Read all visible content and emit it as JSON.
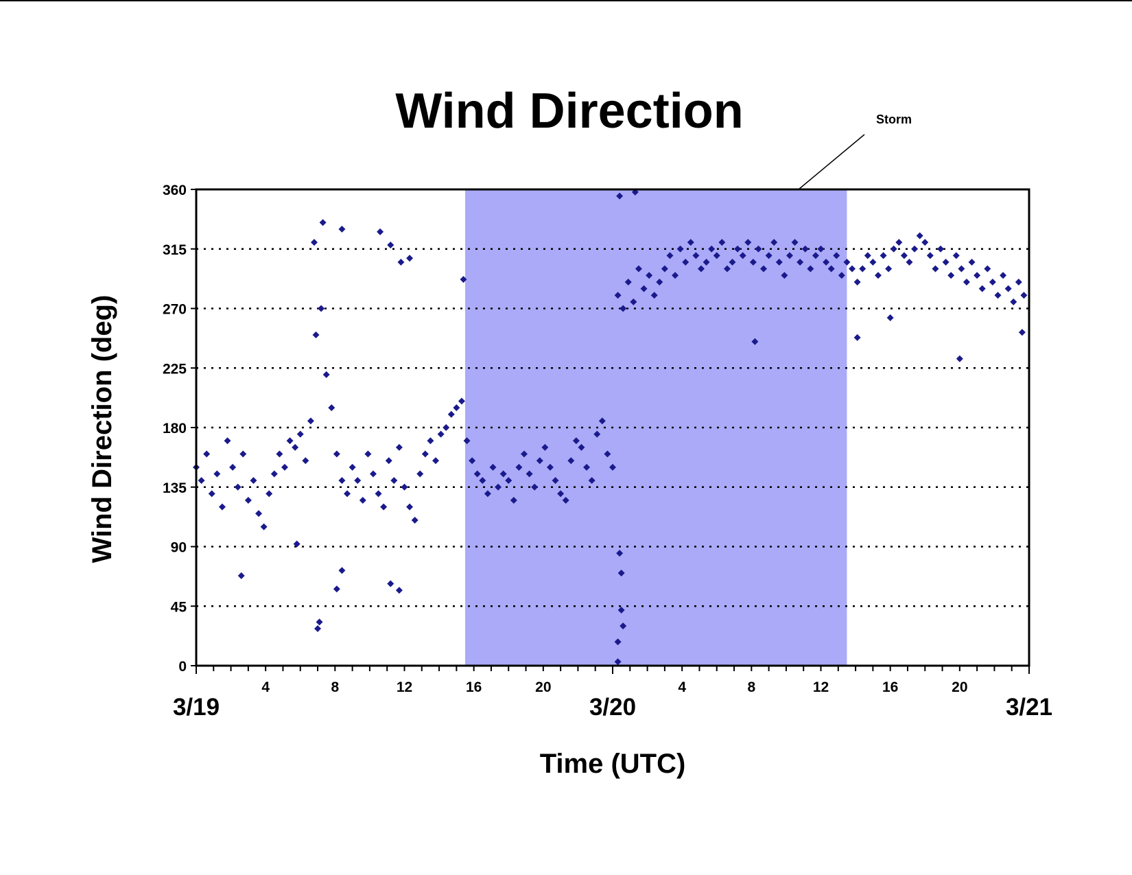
{
  "chart_data": {
    "type": "scatter",
    "title": "Wind Direction",
    "xlabel": "Time (UTC)",
    "ylabel": "Wind Direction (deg)",
    "ylim": [
      0,
      360
    ],
    "yticks": [
      "0",
      "45",
      "90",
      "135",
      "180",
      "225",
      "270",
      "315",
      "360"
    ],
    "xlim_hours": [
      0,
      48
    ],
    "hour_ticks": [
      {
        "hour": 4,
        "label": "4"
      },
      {
        "hour": 8,
        "label": "8"
      },
      {
        "hour": 12,
        "label": "12"
      },
      {
        "hour": 16,
        "label": "16"
      },
      {
        "hour": 20,
        "label": "20"
      },
      {
        "hour": 28,
        "label": "4"
      },
      {
        "hour": 32,
        "label": "8"
      },
      {
        "hour": 36,
        "label": "12"
      },
      {
        "hour": 40,
        "label": "16"
      },
      {
        "hour": 44,
        "label": "20"
      }
    ],
    "date_labels": [
      {
        "hour": 0,
        "label": "3/19"
      },
      {
        "hour": 24,
        "label": "3/20"
      },
      {
        "hour": 48,
        "label": "3/21"
      }
    ],
    "grid": "horizontal dotted",
    "marker_color": "#1a1a8c",
    "storm_band": {
      "label": "Storm",
      "start_hour": 15.5,
      "end_hour": 37.5,
      "color": "#aaaaf8"
    },
    "series": [
      {
        "points": [
          [
            0.0,
            150
          ],
          [
            0.3,
            140
          ],
          [
            0.6,
            160
          ],
          [
            0.9,
            130
          ],
          [
            1.2,
            145
          ],
          [
            1.5,
            120
          ],
          [
            1.8,
            170
          ],
          [
            2.1,
            150
          ],
          [
            2.4,
            135
          ],
          [
            2.7,
            160
          ],
          [
            3.0,
            125
          ],
          [
            3.3,
            140
          ],
          [
            3.6,
            115
          ],
          [
            3.9,
            105
          ],
          [
            4.2,
            130
          ],
          [
            4.5,
            145
          ],
          [
            4.8,
            160
          ],
          [
            5.1,
            150
          ],
          [
            5.4,
            170
          ],
          [
            5.7,
            165
          ],
          [
            6.0,
            175
          ],
          [
            6.3,
            155
          ],
          [
            6.6,
            185
          ],
          [
            6.9,
            250
          ],
          [
            7.2,
            270
          ],
          [
            7.5,
            220
          ],
          [
            7.8,
            195
          ],
          [
            8.1,
            160
          ],
          [
            8.4,
            140
          ],
          [
            8.7,
            130
          ],
          [
            9.0,
            150
          ],
          [
            9.3,
            140
          ],
          [
            9.6,
            125
          ],
          [
            9.9,
            160
          ],
          [
            10.2,
            145
          ],
          [
            10.5,
            130
          ],
          [
            10.8,
            120
          ],
          [
            11.1,
            155
          ],
          [
            11.4,
            140
          ],
          [
            11.7,
            165
          ],
          [
            12.0,
            135
          ],
          [
            12.3,
            120
          ],
          [
            12.6,
            110
          ],
          [
            12.9,
            145
          ],
          [
            13.2,
            160
          ],
          [
            13.5,
            170
          ],
          [
            13.8,
            155
          ],
          [
            14.1,
            175
          ],
          [
            14.4,
            180
          ],
          [
            14.7,
            190
          ],
          [
            15.0,
            195
          ],
          [
            15.3,
            200
          ],
          [
            15.6,
            170
          ],
          [
            15.9,
            155
          ],
          [
            16.2,
            145
          ],
          [
            16.5,
            140
          ],
          [
            16.8,
            130
          ],
          [
            17.1,
            150
          ],
          [
            17.4,
            135
          ],
          [
            17.7,
            145
          ],
          [
            18.0,
            140
          ],
          [
            18.3,
            125
          ],
          [
            18.6,
            150
          ],
          [
            18.9,
            160
          ],
          [
            19.2,
            145
          ],
          [
            19.5,
            135
          ],
          [
            19.8,
            155
          ],
          [
            20.1,
            165
          ],
          [
            20.4,
            150
          ],
          [
            20.7,
            140
          ],
          [
            21.0,
            130
          ],
          [
            21.3,
            125
          ],
          [
            21.6,
            155
          ],
          [
            21.9,
            170
          ],
          [
            22.2,
            165
          ],
          [
            22.5,
            150
          ],
          [
            22.8,
            140
          ],
          [
            23.1,
            175
          ],
          [
            23.4,
            185
          ],
          [
            23.7,
            160
          ],
          [
            24.0,
            150
          ],
          [
            24.3,
            280
          ],
          [
            24.6,
            270
          ],
          [
            24.9,
            290
          ],
          [
            25.2,
            275
          ],
          [
            25.5,
            300
          ],
          [
            25.8,
            285
          ],
          [
            26.1,
            295
          ],
          [
            26.4,
            280
          ],
          [
            26.7,
            290
          ],
          [
            27.0,
            300
          ],
          [
            27.3,
            310
          ],
          [
            27.6,
            295
          ],
          [
            27.9,
            315
          ],
          [
            28.2,
            305
          ],
          [
            28.5,
            320
          ],
          [
            28.8,
            310
          ],
          [
            29.1,
            300
          ],
          [
            29.4,
            305
          ],
          [
            29.7,
            315
          ],
          [
            30.0,
            310
          ],
          [
            30.3,
            320
          ],
          [
            30.6,
            300
          ],
          [
            30.9,
            305
          ],
          [
            31.2,
            315
          ],
          [
            31.5,
            310
          ],
          [
            31.8,
            320
          ],
          [
            32.1,
            305
          ],
          [
            32.4,
            315
          ],
          [
            32.7,
            300
          ],
          [
            33.0,
            310
          ],
          [
            33.3,
            320
          ],
          [
            33.6,
            305
          ],
          [
            33.9,
            295
          ],
          [
            34.2,
            310
          ],
          [
            34.5,
            320
          ],
          [
            34.8,
            305
          ],
          [
            35.1,
            315
          ],
          [
            35.4,
            300
          ],
          [
            35.7,
            310
          ],
          [
            36.0,
            315
          ],
          [
            36.3,
            305
          ],
          [
            36.6,
            300
          ],
          [
            36.9,
            310
          ],
          [
            37.2,
            295
          ],
          [
            37.5,
            305
          ],
          [
            37.8,
            300
          ],
          [
            38.1,
            290
          ],
          [
            38.4,
            300
          ],
          [
            38.7,
            310
          ],
          [
            39.0,
            305
          ],
          [
            39.3,
            295
          ],
          [
            39.6,
            310
          ],
          [
            39.9,
            300
          ],
          [
            40.2,
            315
          ],
          [
            40.5,
            320
          ],
          [
            40.8,
            310
          ],
          [
            41.1,
            305
          ],
          [
            41.4,
            315
          ],
          [
            41.7,
            325
          ],
          [
            42.0,
            320
          ],
          [
            42.3,
            310
          ],
          [
            42.6,
            300
          ],
          [
            42.9,
            315
          ],
          [
            43.2,
            305
          ],
          [
            43.5,
            295
          ],
          [
            43.8,
            310
          ],
          [
            44.1,
            300
          ],
          [
            44.4,
            290
          ],
          [
            44.7,
            305
          ],
          [
            45.0,
            295
          ],
          [
            45.3,
            285
          ],
          [
            45.6,
            300
          ],
          [
            45.9,
            290
          ],
          [
            46.2,
            280
          ],
          [
            46.5,
            295
          ],
          [
            46.8,
            285
          ],
          [
            47.1,
            275
          ],
          [
            47.4,
            290
          ],
          [
            47.7,
            280
          ],
          [
            6.8,
            320
          ],
          [
            7.3,
            335
          ],
          [
            8.4,
            330
          ],
          [
            10.6,
            328
          ],
          [
            11.2,
            318
          ],
          [
            11.8,
            305
          ],
          [
            12.3,
            308
          ],
          [
            15.4,
            292
          ],
          [
            7.0,
            28
          ],
          [
            7.1,
            33
          ],
          [
            8.1,
            58
          ],
          [
            8.4,
            72
          ],
          [
            11.2,
            62
          ],
          [
            11.7,
            57
          ],
          [
            2.6,
            68
          ],
          [
            5.8,
            92
          ],
          [
            24.3,
            3
          ],
          [
            24.5,
            42
          ],
          [
            24.6,
            30
          ],
          [
            24.3,
            18
          ],
          [
            24.4,
            85
          ],
          [
            24.5,
            70
          ],
          [
            24.4,
            355
          ],
          [
            25.3,
            358
          ],
          [
            32.2,
            245
          ],
          [
            38.1,
            248
          ],
          [
            40.0,
            263
          ],
          [
            44.0,
            232
          ],
          [
            47.6,
            252
          ]
        ]
      }
    ]
  }
}
